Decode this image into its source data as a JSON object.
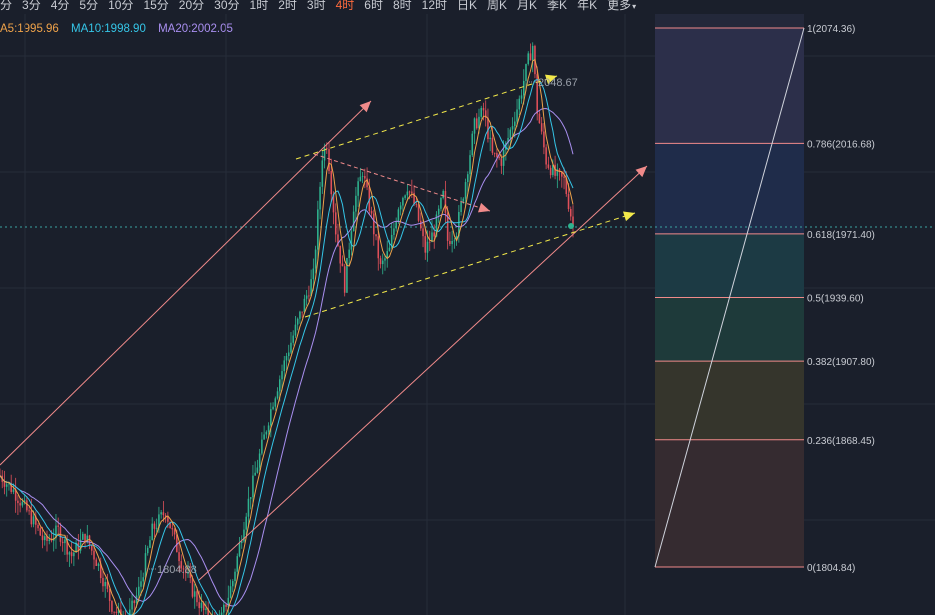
{
  "toolbar": {
    "timeframes": [
      "分",
      "3分",
      "4分",
      "5分",
      "10分",
      "15分",
      "20分",
      "30分",
      "1时",
      "2时",
      "3时",
      "4时",
      "6时",
      "8时",
      "12时",
      "日K",
      "周K",
      "月K",
      "季K",
      "年K",
      "更多"
    ],
    "active": "4时"
  },
  "legend": {
    "ma5": "A5:1995.96",
    "ma10": "MA10:1998.90",
    "ma20": "MA20:2002.05"
  },
  "colors": {
    "background": "#1a1f2b",
    "up": "#2fb38f",
    "down": "#e0505a",
    "ma5": "#f0a34a",
    "ma10": "#35c6e8",
    "ma20": "#a98ff0",
    "channel_salmon": "#f08a8a",
    "channel_yellow": "#f2e84a",
    "fib_line": "#f08a8a",
    "active_tab": "#ff6a3d"
  },
  "chart_data": {
    "type": "candlestick",
    "price_high_label": "2048.67",
    "price_low_label": "1804.88",
    "fibonacci": [
      {
        "label": "1(2074.36)",
        "price": 2074.36,
        "band_color": "#2c2f4a"
      },
      {
        "label": "0.786(2016.68)",
        "price": 2016.68,
        "band_color": "#1f2c4a"
      },
      {
        "label": "0.618(1971.40)",
        "price": 1971.4,
        "band_color": "#1c3a44"
      },
      {
        "label": "0.5(1939.60)",
        "price": 1939.6,
        "band_color": "#1e3a3a"
      },
      {
        "label": "0.382(1907.80)",
        "price": 1907.8,
        "band_color": "#35352c"
      },
      {
        "label": "0.236(1868.45)",
        "price": 1868.45,
        "band_color": "#352b30"
      },
      {
        "label": "0(1804.84)",
        "price": 1804.84,
        "band_color": null
      }
    ],
    "series_anchor": [
      [
        0,
        1872
      ],
      [
        6,
        1866
      ],
      [
        14,
        1855
      ],
      [
        20,
        1845
      ],
      [
        26,
        1850
      ],
      [
        32,
        1840
      ],
      [
        38,
        1848
      ],
      [
        44,
        1836
      ],
      [
        50,
        1820
      ],
      [
        56,
        1812
      ],
      [
        62,
        1826
      ],
      [
        68,
        1850
      ],
      [
        74,
        1858
      ],
      [
        80,
        1840
      ],
      [
        86,
        1826
      ],
      [
        92,
        1816
      ],
      [
        98,
        1812
      ],
      [
        104,
        1830
      ],
      [
        110,
        1858
      ],
      [
        116,
        1880
      ],
      [
        122,
        1902
      ],
      [
        128,
        1920
      ],
      [
        134,
        1936
      ],
      [
        140,
        1952
      ],
      [
        144,
        2000
      ],
      [
        146,
        2005
      ],
      [
        150,
        1970
      ],
      [
        154,
        1948
      ],
      [
        158,
        1980
      ],
      [
        162,
        1994
      ],
      [
        166,
        1975
      ],
      [
        170,
        1955
      ],
      [
        174,
        1962
      ],
      [
        178,
        1980
      ],
      [
        182,
        1988
      ],
      [
        186,
        1978
      ],
      [
        190,
        1962
      ],
      [
        194,
        1970
      ],
      [
        198,
        1984
      ],
      [
        200,
        1966
      ],
      [
        204,
        1970
      ],
      [
        208,
        1990
      ],
      [
        212,
        2012
      ],
      [
        216,
        2018
      ],
      [
        220,
        2000
      ],
      [
        224,
        1998
      ],
      [
        228,
        2010
      ],
      [
        232,
        2022
      ],
      [
        236,
        2038
      ],
      [
        238,
        2044
      ],
      [
        240,
        2018
      ],
      [
        244,
        1998
      ],
      [
        248,
        1992
      ],
      [
        252,
        1990
      ],
      [
        256,
        1972
      ]
    ]
  }
}
